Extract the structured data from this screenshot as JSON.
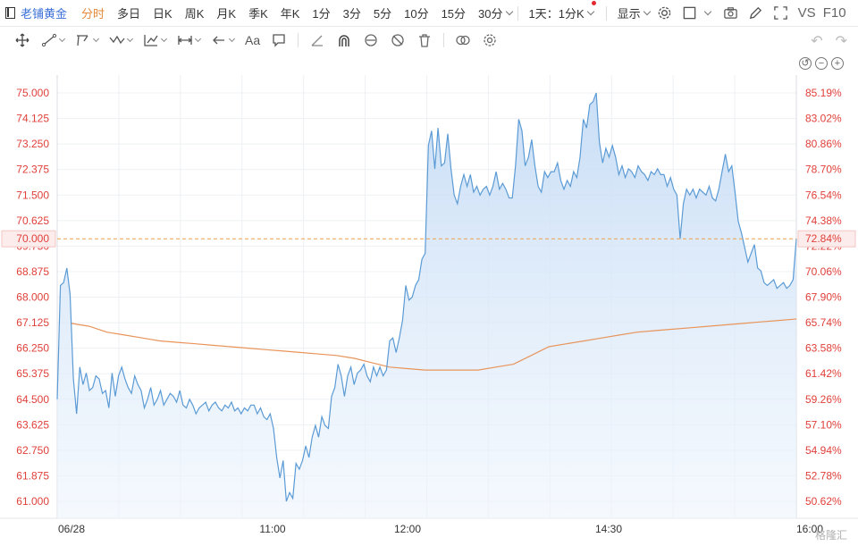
{
  "toolbar": {
    "title": "老铺黄金",
    "periods": [
      "分时",
      "多日",
      "日K",
      "周K",
      "月K",
      "季K",
      "年K",
      "1分",
      "3分",
      "5分",
      "10分",
      "15分"
    ],
    "active_period": "分时",
    "more_period": "30分",
    "range_select": "1天：1分K",
    "display_label": "显示",
    "vs_label": "VS",
    "f10_label": "F10"
  },
  "drawbar": {
    "text_tool": "Aa"
  },
  "colors": {
    "price_line": "#5b9bd5",
    "avg_line": "#e8945a",
    "axis_text": "#e0403a",
    "ref_line": "#f0a04b"
  },
  "watermark": "格隆汇",
  "chart_data": {
    "type": "area",
    "x_ticks": [
      "06/28",
      "11:00",
      "12:00",
      "14:30",
      "16:00"
    ],
    "y_left_ticks": [
      "75.000",
      "74.125",
      "73.250",
      "72.375",
      "71.500",
      "70.625",
      "69.750",
      "68.875",
      "68.000",
      "67.125",
      "66.250",
      "65.375",
      "64.500",
      "63.625",
      "62.750",
      "61.875",
      "61.000"
    ],
    "y_right_ticks": [
      "85.19%",
      "83.02%",
      "80.86%",
      "78.70%",
      "76.54%",
      "74.38%",
      "72.22%",
      "70.06%",
      "67.90%",
      "65.74%",
      "63.58%",
      "61.42%",
      "59.26%",
      "57.10%",
      "54.94%",
      "52.78%",
      "50.62%"
    ],
    "ylim": [
      61.0,
      75.0
    ],
    "reference": {
      "label": "70.000",
      "pct_label": "72.84%",
      "value": 70.0
    },
    "series": [
      {
        "values": [
          64.5,
          68.4,
          68.5,
          69.0,
          68.1,
          65.2,
          64.0,
          65.6,
          65.0,
          65.4,
          64.8,
          64.9,
          65.3,
          65.2,
          64.7,
          64.8,
          64.2,
          65.4,
          64.6,
          65.3,
          65.6,
          65.2,
          64.9,
          64.7,
          65.3,
          65.0,
          64.8,
          64.2,
          64.5,
          64.9,
          64.3,
          64.5,
          64.8,
          64.3,
          64.5,
          64.7,
          64.6,
          64.4,
          64.8,
          64.3,
          64.2,
          64.5,
          64.3,
          64.0,
          64.2,
          64.3,
          64.4,
          64.1,
          64.3,
          64.4,
          64.2,
          64.1,
          64.3,
          64.2,
          64.4,
          64.1,
          64.2,
          64.0,
          64.2,
          64.1,
          64.3,
          64.3,
          64.0,
          64.2,
          63.9,
          63.8,
          64.0,
          63.5,
          62.5,
          61.8,
          62.4,
          61.0,
          61.3,
          61.1,
          62.3,
          62.1,
          62.4,
          62.9,
          62.5,
          63.2,
          63.6,
          63.2,
          63.9,
          63.6,
          63.5,
          64.6,
          64.9,
          65.7,
          65.3,
          64.6,
          65.3,
          65.6,
          65.0,
          65.4,
          65.5,
          65.7,
          65.3,
          65.1,
          65.6,
          65.3,
          65.6,
          65.3,
          65.5,
          66.5,
          66.6,
          66.1,
          66.6,
          67.2,
          68.4,
          67.9,
          68.0,
          68.4,
          68.6,
          69.3,
          69.5,
          73.2,
          73.7,
          72.4,
          73.8,
          72.5,
          72.6,
          73.6,
          72.4,
          71.5,
          71.2,
          71.8,
          72.2,
          71.8,
          72.2,
          71.6,
          71.8,
          71.5,
          71.7,
          71.8,
          71.5,
          71.8,
          72.3,
          71.7,
          71.9,
          71.7,
          71.4,
          71.4,
          72.5,
          74.1,
          73.7,
          72.5,
          72.8,
          73.4,
          72.5,
          71.8,
          71.6,
          72.3,
          72.1,
          72.3,
          72.3,
          72.6,
          72.0,
          71.7,
          72.0,
          71.8,
          72.3,
          72.1,
          72.8,
          74.1,
          73.8,
          74.6,
          74.7,
          75.0,
          73.3,
          72.6,
          73.1,
          72.8,
          73.2,
          72.8,
          72.2,
          72.5,
          72.1,
          72.4,
          72.3,
          72.1,
          72.5,
          72.3,
          72.2,
          72.0,
          72.3,
          72.2,
          72.4,
          72.2,
          72.2,
          71.8,
          72.1,
          71.7,
          71.5,
          70.0,
          71.2,
          71.7,
          71.5,
          71.7,
          71.4,
          71.7,
          71.6,
          71.5,
          71.8,
          71.4,
          71.3,
          71.7,
          72.3,
          72.9,
          72.3,
          72.5,
          71.6,
          70.6,
          70.2,
          69.7,
          69.2,
          69.5,
          69.8,
          69.0,
          68.9,
          68.5,
          68.4,
          68.5,
          68.6,
          68.3,
          68.4,
          68.5,
          68.3,
          68.4,
          68.6,
          70.0
        ],
        "color": "#5b9bd5"
      },
      {
        "values": [
          67.1,
          67.0,
          66.8,
          66.7,
          66.6,
          66.5,
          66.45,
          66.4,
          66.35,
          66.3,
          66.25,
          66.2,
          66.15,
          66.1,
          66.05,
          66.0,
          65.9,
          65.75,
          65.6,
          65.55,
          65.5,
          65.5,
          65.5,
          65.5,
          65.6,
          65.7,
          66.0,
          66.3,
          66.4,
          66.5,
          66.6,
          66.7,
          66.8,
          66.85,
          66.9,
          66.95,
          67.0,
          67.05,
          67.1,
          67.15,
          67.2,
          67.25
        ],
        "color": "#e8945a"
      }
    ]
  }
}
